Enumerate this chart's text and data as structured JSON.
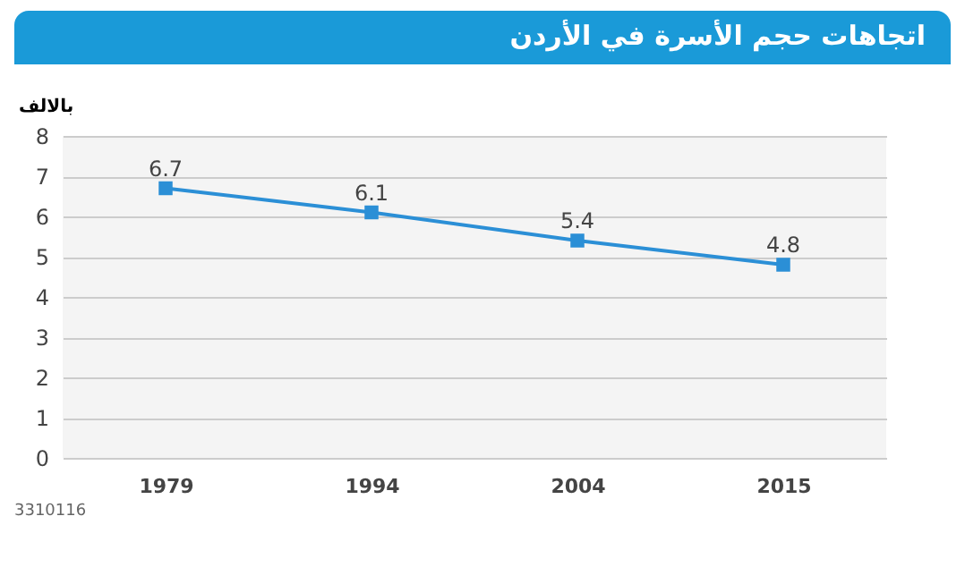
{
  "chart_data": {
    "type": "line",
    "title": "اتجاهات حجم الأسرة في الأردن",
    "ylabel": "بالالف",
    "categories": [
      "1979",
      "1994",
      "2004",
      "2015"
    ],
    "series": [
      {
        "color": "#2b8fd6",
        "values": [
          6.7,
          6.1,
          5.4,
          4.8
        ]
      }
    ],
    "ylim": [
      0,
      8
    ],
    "yticks": [
      0,
      1,
      2,
      3,
      4,
      5,
      6,
      7,
      8
    ],
    "grid": "y",
    "marker": "square",
    "line_style": "solid",
    "data_labels": true,
    "annotations": [
      "3310116"
    ]
  }
}
